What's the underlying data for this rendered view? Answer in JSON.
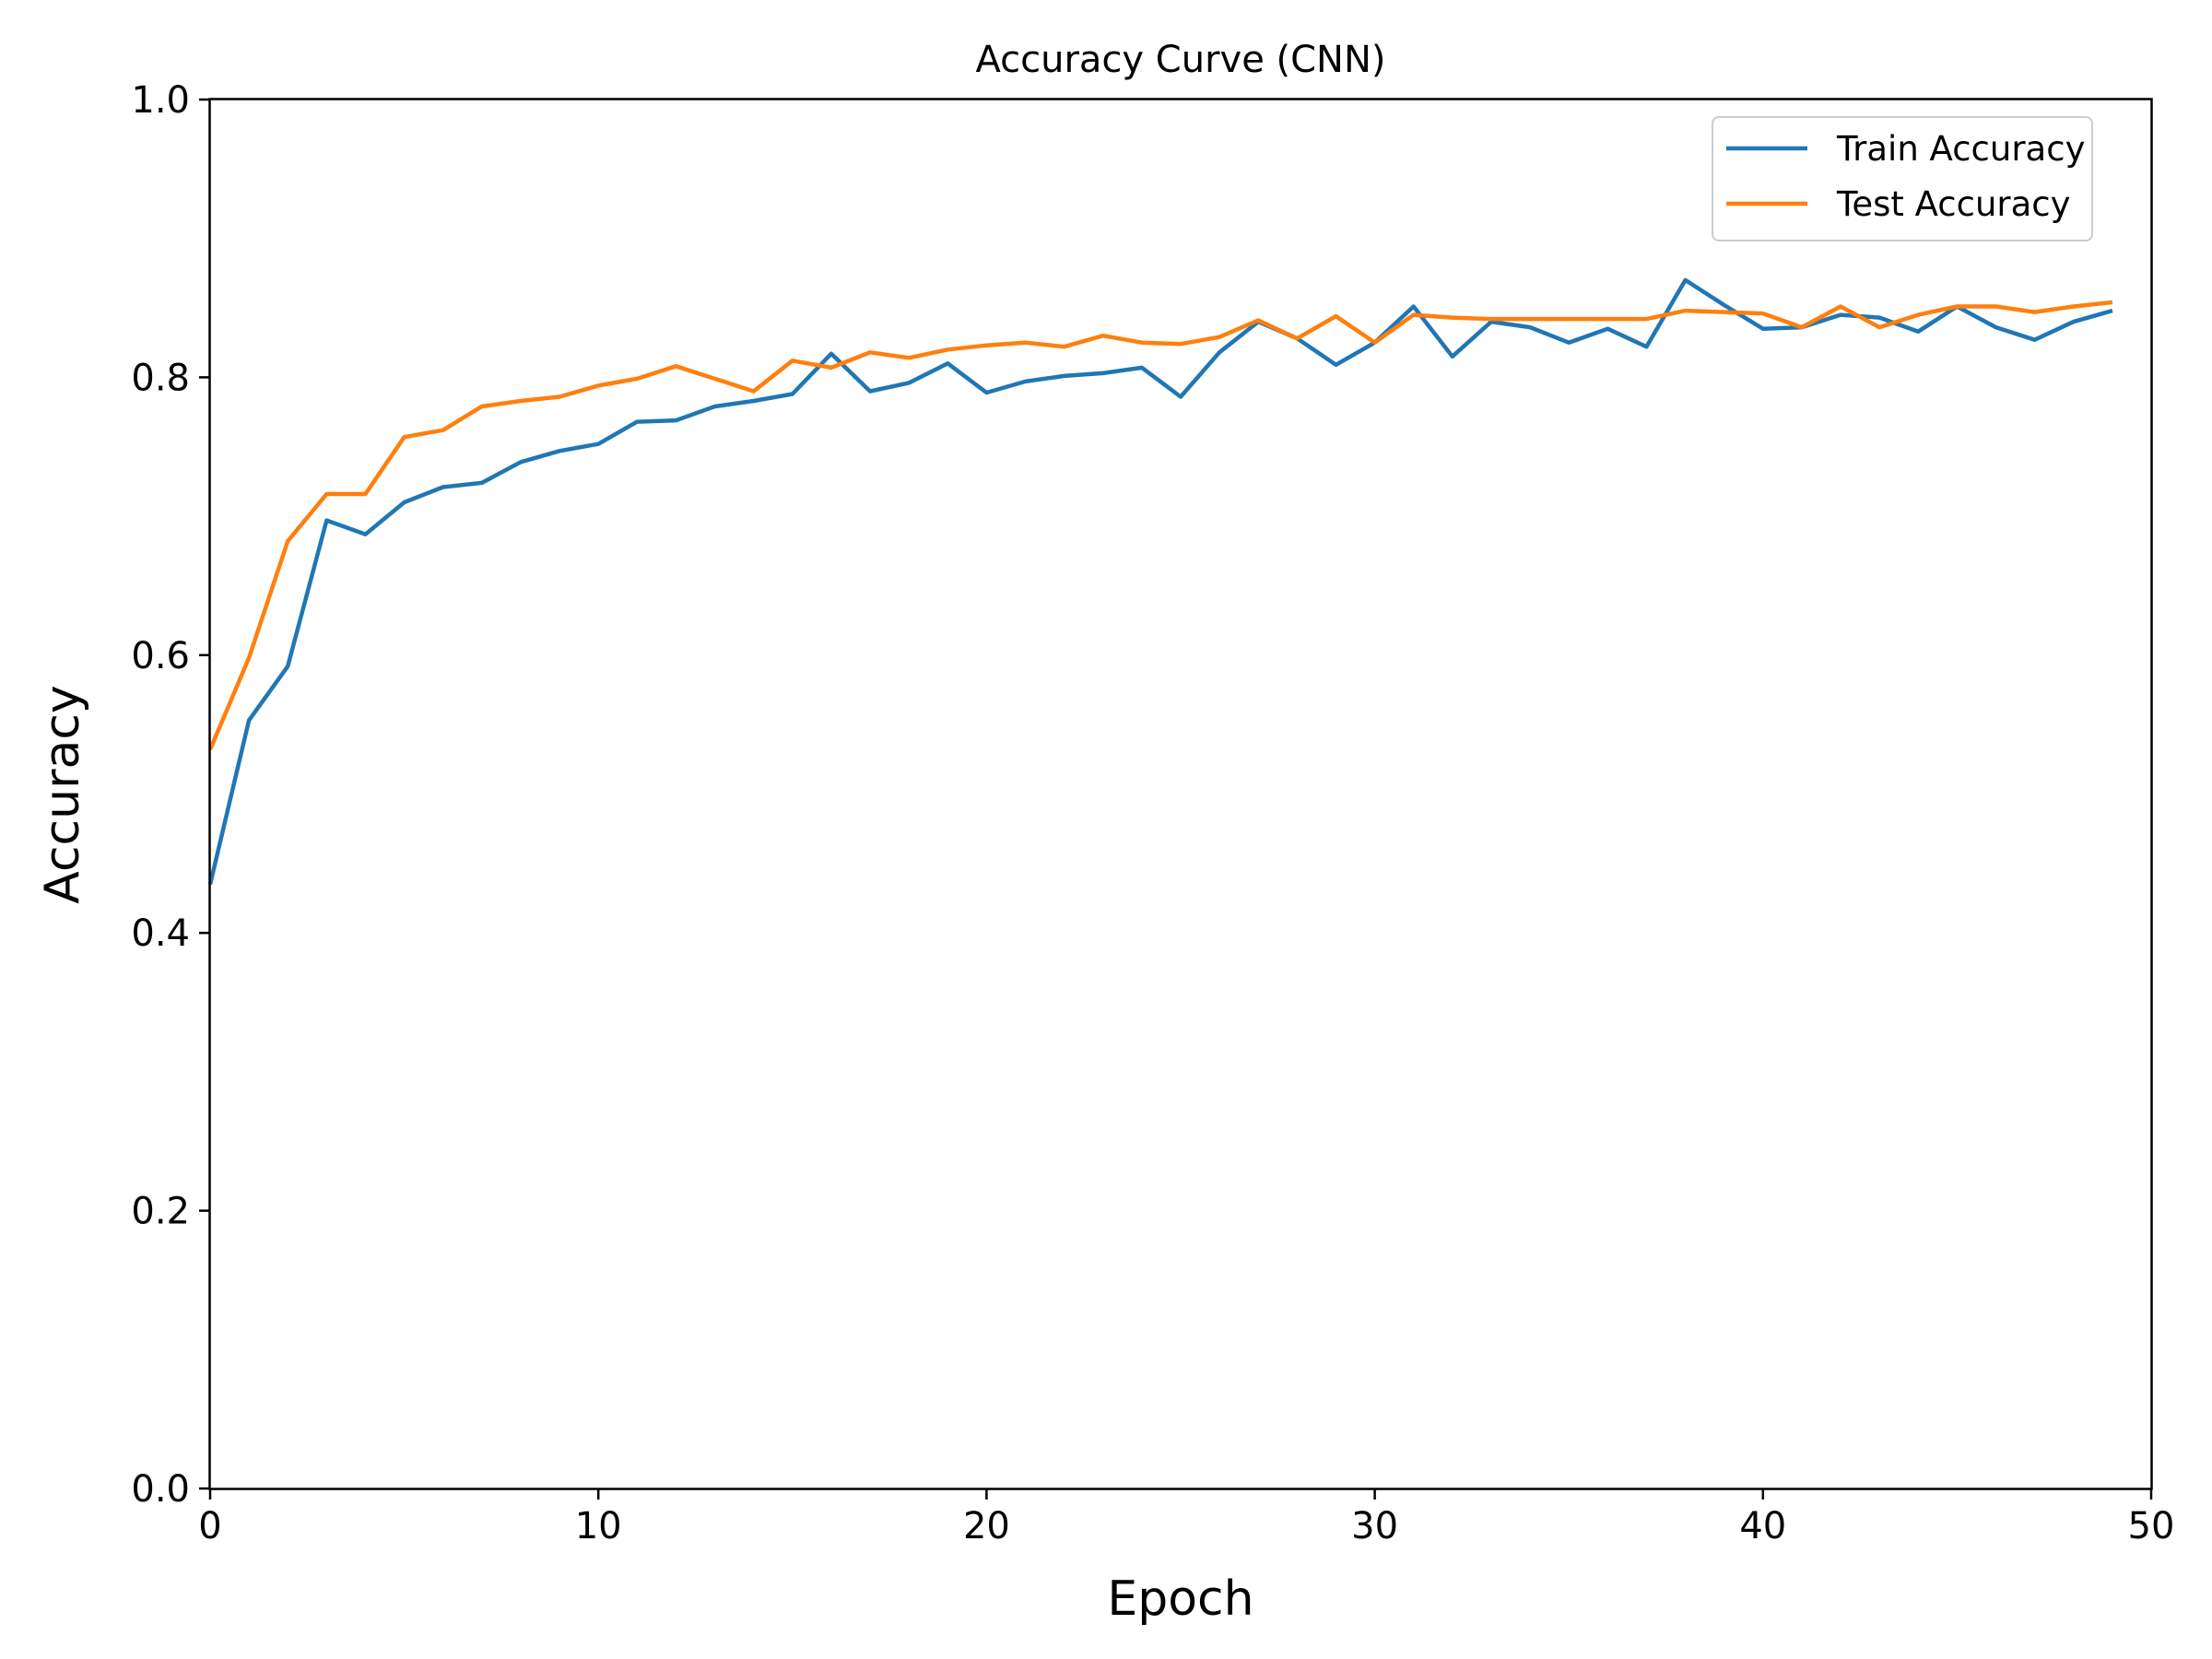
{
  "chart_data": {
    "type": "line",
    "title": "Accuracy Curve (CNN)",
    "xlabel": "Epoch",
    "ylabel": "Accuracy",
    "xlim": [
      0,
      50
    ],
    "ylim": [
      0.0,
      1.0
    ],
    "xticks": [
      0,
      10,
      20,
      30,
      40,
      50
    ],
    "xtick_labels": [
      "0",
      "10",
      "20",
      "30",
      "40",
      "50"
    ],
    "yticks": [
      0.0,
      0.2,
      0.4,
      0.6,
      0.8,
      1.0
    ],
    "ytick_labels": [
      "0.0",
      "0.2",
      "0.4",
      "0.6",
      "0.8",
      "1.0"
    ],
    "grid": false,
    "legend_position": "top-right",
    "x": [
      0,
      1,
      2,
      3,
      4,
      5,
      6,
      7,
      8,
      9,
      10,
      11,
      12,
      13,
      14,
      15,
      16,
      17,
      18,
      19,
      20,
      21,
      22,
      23,
      24,
      25,
      26,
      27,
      28,
      29,
      30,
      31,
      32,
      33,
      34,
      35,
      36,
      37,
      38,
      39,
      40,
      41,
      42,
      43,
      44,
      45,
      46,
      47,
      48,
      49
    ],
    "series": [
      {
        "name": "Train Accuracy",
        "color": "#1f77b4",
        "values": [
          0.435,
          0.553,
          0.592,
          0.697,
          0.687,
          0.71,
          0.721,
          0.724,
          0.739,
          0.747,
          0.752,
          0.768,
          0.769,
          0.779,
          0.783,
          0.788,
          0.817,
          0.79,
          0.796,
          0.81,
          0.789,
          0.797,
          0.801,
          0.803,
          0.807,
          0.786,
          0.818,
          0.84,
          0.828,
          0.809,
          0.825,
          0.851,
          0.815,
          0.84,
          0.836,
          0.825,
          0.835,
          0.822,
          0.87,
          0.852,
          0.835,
          0.836,
          0.845,
          0.843,
          0.833,
          0.851,
          0.836,
          0.827,
          0.84,
          0.848
        ]
      },
      {
        "name": "Test Accuracy",
        "color": "#ff7f0e",
        "values": [
          0.532,
          0.598,
          0.682,
          0.716,
          0.716,
          0.757,
          0.762,
          0.779,
          0.783,
          0.786,
          0.794,
          0.799,
          0.808,
          0.799,
          0.79,
          0.812,
          0.807,
          0.818,
          0.814,
          0.82,
          0.823,
          0.825,
          0.822,
          0.83,
          0.825,
          0.824,
          0.829,
          0.841,
          0.828,
          0.844,
          0.825,
          0.845,
          0.843,
          0.842,
          0.842,
          0.842,
          0.842,
          0.842,
          0.848,
          0.847,
          0.846,
          0.836,
          0.851,
          0.836,
          0.845,
          0.851,
          0.851,
          0.847,
          0.851,
          0.854
        ]
      }
    ]
  }
}
